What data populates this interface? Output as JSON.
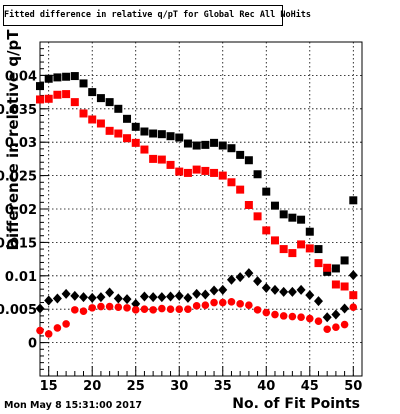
{
  "title": "Fitted difference in relative q/pT for Global Rec All NoHits",
  "timestamp": "Mon May  8 15:31:00 2017",
  "chart_data": {
    "type": "scatter",
    "xlabel": "No. of Fit Points",
    "ylabel": "Difference in relative q/pT",
    "xlim": [
      14,
      51
    ],
    "ylim": [
      -0.005,
      0.045
    ],
    "x_ticks": [
      15,
      20,
      25,
      30,
      35,
      40,
      45,
      50
    ],
    "y_ticks": [
      0,
      0.005,
      0.01,
      0.015,
      0.02,
      0.025,
      0.03,
      0.035,
      0.04
    ],
    "y_tick_labels": [
      "0",
      "0.005",
      "0.01",
      "0.015",
      "0.02",
      "0.025",
      "0.03",
      "0.035",
      "0.04"
    ],
    "grid": true,
    "colors": {
      "black": "#000000",
      "red": "#ff0000"
    },
    "series": [
      {
        "marker": "square",
        "color": "#000000",
        "x": [
          14,
          15,
          16,
          17,
          18,
          19,
          20,
          21,
          22,
          23,
          24,
          25,
          26,
          27,
          28,
          29,
          30,
          31,
          32,
          33,
          34,
          35,
          36,
          37,
          38,
          39,
          40,
          41,
          42,
          43,
          44,
          45,
          46,
          47,
          48,
          49,
          50
        ],
        "y": [
          0.0384,
          0.0395,
          0.0397,
          0.0398,
          0.0399,
          0.0388,
          0.0375,
          0.0366,
          0.036,
          0.035,
          0.0335,
          0.0323,
          0.0316,
          0.0313,
          0.0312,
          0.0309,
          0.0307,
          0.0298,
          0.0295,
          0.0296,
          0.0299,
          0.0295,
          0.0291,
          0.0281,
          0.0273,
          0.0252,
          0.0226,
          0.0205,
          0.0192,
          0.0187,
          0.0184,
          0.0166,
          0.014,
          0.0106,
          0.0111,
          0.0123,
          0.0213
        ]
      },
      {
        "marker": "square",
        "color": "#ff0000",
        "x": [
          14,
          15,
          16,
          17,
          18,
          19,
          20,
          21,
          22,
          23,
          24,
          25,
          26,
          27,
          28,
          29,
          30,
          31,
          32,
          33,
          34,
          35,
          36,
          37,
          38,
          39,
          40,
          41,
          42,
          43,
          44,
          45,
          46,
          47,
          48,
          49,
          50
        ],
        "y": [
          0.0364,
          0.0365,
          0.0371,
          0.0372,
          0.036,
          0.0343,
          0.0334,
          0.0328,
          0.0317,
          0.0313,
          0.0306,
          0.0299,
          0.0289,
          0.0275,
          0.0274,
          0.0266,
          0.0256,
          0.0254,
          0.0259,
          0.0257,
          0.0254,
          0.025,
          0.024,
          0.0229,
          0.0206,
          0.0189,
          0.0168,
          0.0153,
          0.014,
          0.0134,
          0.0147,
          0.0141,
          0.0119,
          0.0112,
          0.0087,
          0.0084,
          0.0071
        ]
      },
      {
        "marker": "diamond",
        "color": "#000000",
        "x": [
          14,
          15,
          16,
          17,
          18,
          19,
          20,
          21,
          22,
          23,
          24,
          25,
          26,
          27,
          28,
          29,
          30,
          31,
          32,
          33,
          34,
          35,
          36,
          37,
          38,
          39,
          40,
          41,
          42,
          43,
          44,
          45,
          46,
          47,
          48,
          49,
          50
        ],
        "y": [
          0.0051,
          0.0063,
          0.0066,
          0.0073,
          0.007,
          0.0068,
          0.0067,
          0.0068,
          0.0075,
          0.0066,
          0.0065,
          0.0058,
          0.0069,
          0.0068,
          0.0068,
          0.0069,
          0.007,
          0.0067,
          0.0073,
          0.0072,
          0.0078,
          0.0079,
          0.0094,
          0.0098,
          0.0104,
          0.0092,
          0.0082,
          0.0079,
          0.0076,
          0.0076,
          0.0079,
          0.0071,
          0.0062,
          0.0038,
          0.0042,
          0.0051,
          0.0101
        ]
      },
      {
        "marker": "circle",
        "color": "#ff0000",
        "x": [
          14,
          15,
          16,
          17,
          18,
          19,
          20,
          21,
          22,
          23,
          24,
          25,
          26,
          27,
          28,
          29,
          30,
          31,
          32,
          33,
          34,
          35,
          36,
          37,
          38,
          39,
          40,
          41,
          42,
          43,
          44,
          45,
          46,
          47,
          48,
          49,
          50
        ],
        "y": [
          0.0018,
          0.0013,
          0.0022,
          0.0028,
          0.0049,
          0.0047,
          0.0052,
          0.0054,
          0.0054,
          0.0053,
          0.0052,
          0.0049,
          0.005,
          0.0049,
          0.0051,
          0.005,
          0.005,
          0.005,
          0.0055,
          0.0056,
          0.006,
          0.006,
          0.0061,
          0.0058,
          0.0056,
          0.0049,
          0.0045,
          0.0042,
          0.004,
          0.0039,
          0.0038,
          0.0036,
          0.0032,
          0.002,
          0.0023,
          0.0027,
          0.0053
        ]
      }
    ]
  }
}
